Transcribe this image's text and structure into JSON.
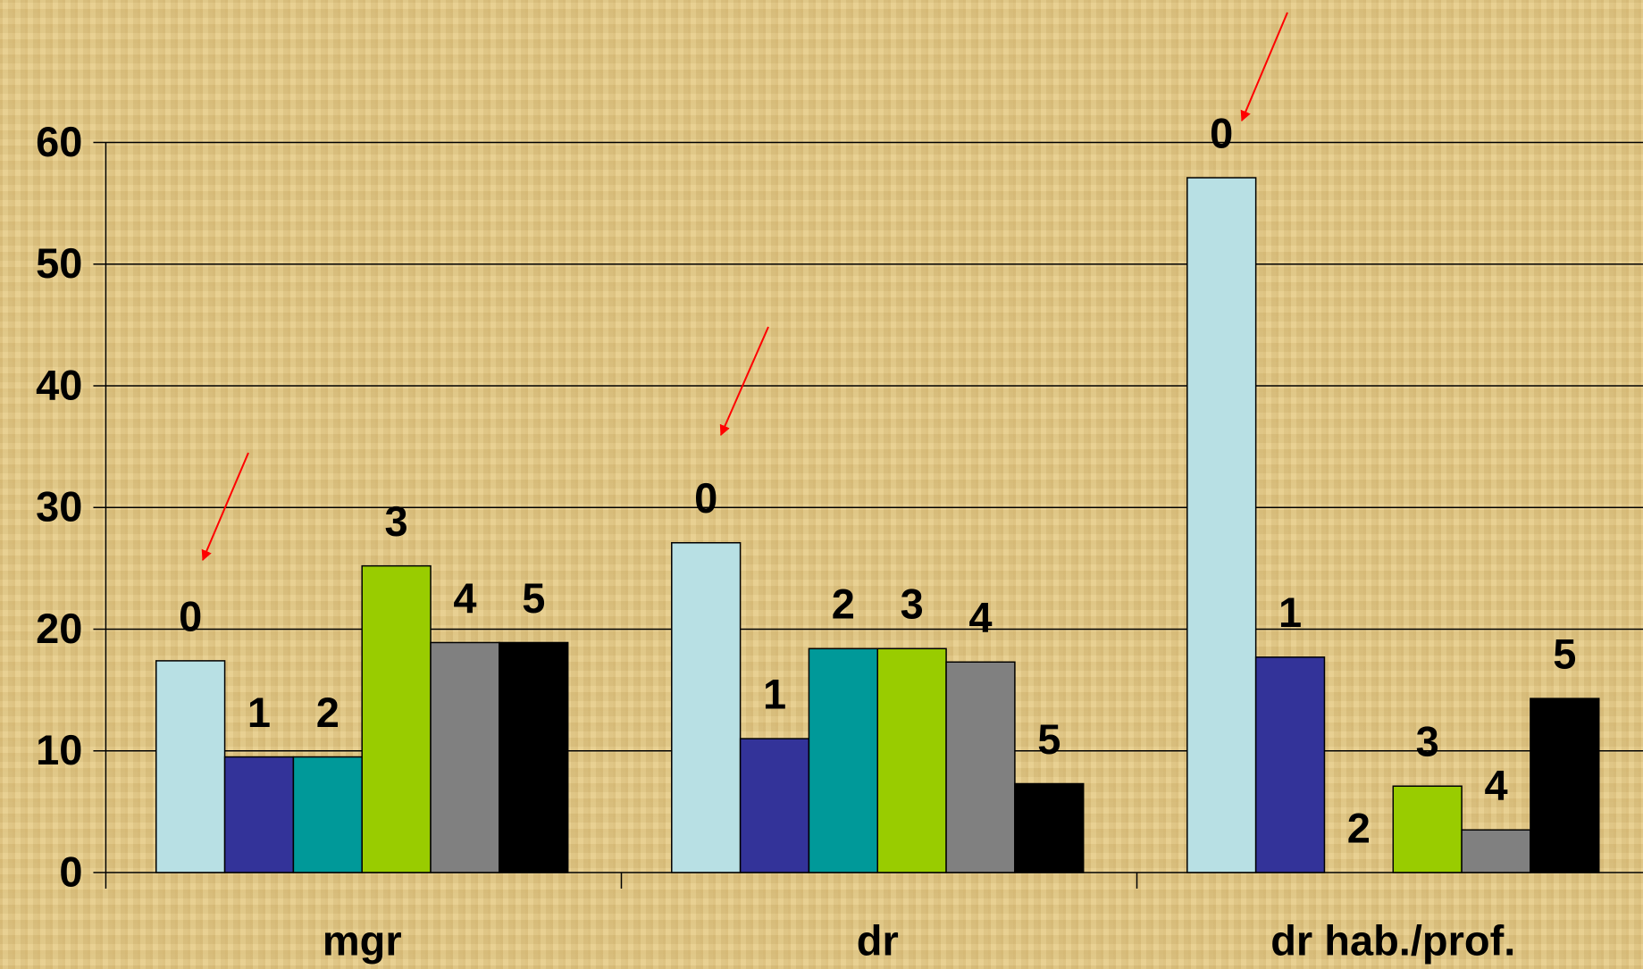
{
  "chart_data": {
    "type": "bar",
    "categories": [
      "mgr",
      "dr",
      "dr hab./prof."
    ],
    "series": [
      {
        "name": "0",
        "color": "#b8e0e4",
        "values": [
          17.4,
          27.1,
          57.1
        ]
      },
      {
        "name": "1",
        "color": "#333399",
        "values": [
          9.5,
          11.0,
          17.7
        ]
      },
      {
        "name": "2",
        "color": "#009999",
        "values": [
          9.5,
          18.4,
          0
        ]
      },
      {
        "name": "3",
        "color": "#99cc00",
        "values": [
          25.2,
          18.4,
          7.1
        ]
      },
      {
        "name": "4",
        "color": "#808080",
        "values": [
          18.9,
          17.3,
          3.5
        ]
      },
      {
        "name": "5",
        "color": "#000000",
        "values": [
          18.9,
          7.3,
          14.3
        ]
      }
    ],
    "ylim": [
      0,
      60
    ],
    "yticks": [
      0,
      10,
      20,
      30,
      40,
      50,
      60
    ],
    "grid": true
  }
}
